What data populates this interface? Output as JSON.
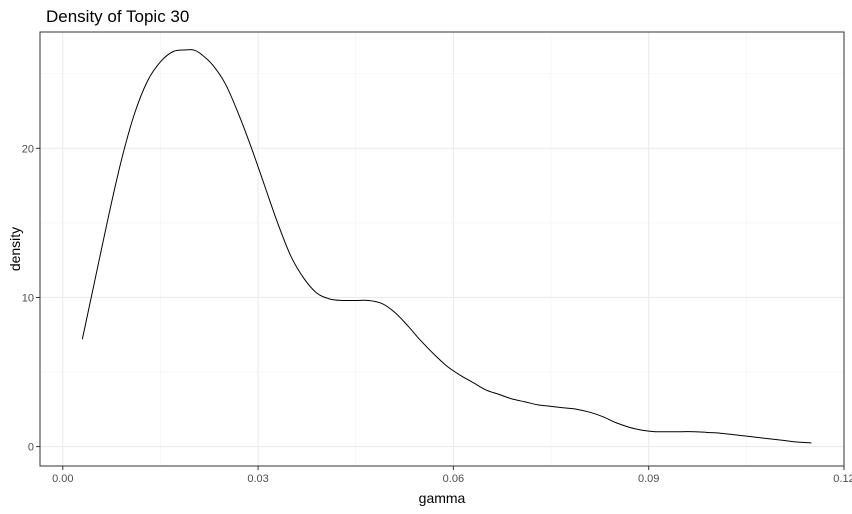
{
  "chart_data": {
    "type": "line",
    "title": "Density of Topic 30",
    "xlabel": "gamma",
    "ylabel": "density",
    "xlim": [
      -0.0035,
      0.12
    ],
    "ylim": [
      -1.3,
      27.8
    ],
    "x_ticks": [
      0.0,
      0.03,
      0.06,
      0.09,
      0.12
    ],
    "x_tick_labels": [
      "0.00",
      "0.03",
      "0.06",
      "0.09",
      "0.12"
    ],
    "y_ticks": [
      0,
      10,
      20
    ],
    "y_tick_labels": [
      "0",
      "10",
      "20"
    ],
    "x_minor_ticks": [
      0.015,
      0.045,
      0.075,
      0.105
    ],
    "y_minor_ticks": [
      5,
      15,
      25
    ],
    "grid": true,
    "legend": "none",
    "series": [
      {
        "color": "#000000",
        "x": [
          0.003,
          0.005,
          0.007,
          0.009,
          0.011,
          0.013,
          0.015,
          0.017,
          0.019,
          0.02,
          0.021,
          0.023,
          0.025,
          0.027,
          0.029,
          0.031,
          0.033,
          0.035,
          0.037,
          0.039,
          0.041,
          0.043,
          0.045,
          0.047,
          0.049,
          0.051,
          0.053,
          0.055,
          0.057,
          0.059,
          0.061,
          0.063,
          0.065,
          0.067,
          0.069,
          0.071,
          0.073,
          0.075,
          0.077,
          0.079,
          0.081,
          0.083,
          0.085,
          0.087,
          0.089,
          0.091,
          0.093,
          0.095,
          0.097,
          0.099,
          0.101,
          0.103,
          0.105,
          0.107,
          0.109,
          0.111,
          0.113,
          0.115
        ],
        "y": [
          7.2,
          11.3,
          15.4,
          19.2,
          22.3,
          24.5,
          25.8,
          26.5,
          26.6,
          26.6,
          26.4,
          25.6,
          24.3,
          22.3,
          20.0,
          17.5,
          15.0,
          12.8,
          11.3,
          10.3,
          9.9,
          9.8,
          9.8,
          9.8,
          9.6,
          9.0,
          8.1,
          7.1,
          6.2,
          5.4,
          4.8,
          4.3,
          3.8,
          3.5,
          3.2,
          3.0,
          2.8,
          2.7,
          2.6,
          2.5,
          2.3,
          2.0,
          1.6,
          1.3,
          1.1,
          1.0,
          1.0,
          1.0,
          1.0,
          0.95,
          0.9,
          0.8,
          0.7,
          0.6,
          0.5,
          0.4,
          0.3,
          0.25
        ]
      }
    ]
  }
}
